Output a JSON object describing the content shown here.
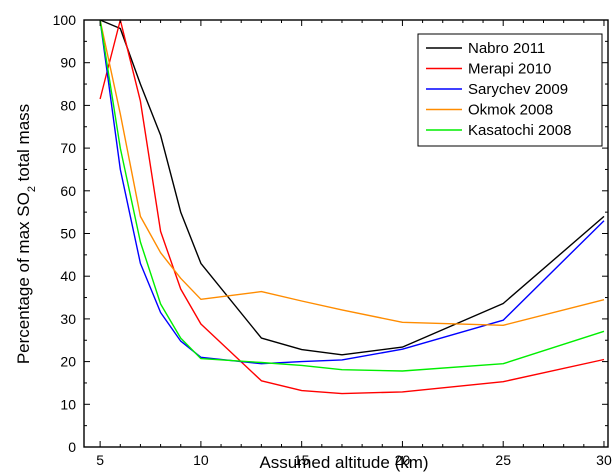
{
  "chart_data": {
    "type": "line",
    "xlabel": "Assumed altitude (km)",
    "ylabel": "Percentage of max SO2 total mass",
    "ylabel_parts": {
      "before": "Percentage of max SO",
      "sub": "2",
      "after": " total mass"
    },
    "xlim": [
      4.2,
      30.2
    ],
    "ylim": [
      0,
      100
    ],
    "xticks": [
      5,
      10,
      15,
      20,
      25,
      30
    ],
    "yticks": [
      0,
      10,
      20,
      30,
      40,
      50,
      60,
      70,
      80,
      90,
      100
    ],
    "grid": false,
    "legend_position": "top-right",
    "series": [
      {
        "name": "Nabro 2011",
        "color": "#000000",
        "x": [
          5,
          6,
          7,
          8,
          9,
          10,
          13,
          15,
          17,
          20,
          25,
          30
        ],
        "y": [
          100,
          98,
          85,
          73,
          55,
          43,
          25.5,
          22.8,
          21.6,
          23.4,
          33.6,
          54
        ]
      },
      {
        "name": "Merapi 2010",
        "color": "#ff0000",
        "x": [
          5,
          6,
          7,
          8,
          9,
          10,
          13,
          15,
          17,
          20,
          25,
          30
        ],
        "y": [
          81.5,
          100,
          81,
          50.5,
          37,
          28.8,
          15.5,
          13.2,
          12.5,
          12.9,
          15.3,
          20.5
        ]
      },
      {
        "name": "Sarychev 2009",
        "color": "#0000ff",
        "x": [
          5,
          6,
          7,
          8,
          9,
          10,
          13,
          15,
          17,
          20,
          25,
          30
        ],
        "y": [
          100,
          65,
          43,
          31.5,
          24.8,
          21,
          19.5,
          20,
          20.4,
          22.9,
          29.7,
          53
        ]
      },
      {
        "name": "Okmok 2008",
        "color": "#ff8c00",
        "x": [
          5,
          6,
          7,
          8,
          9,
          10,
          13,
          15,
          17,
          20,
          25,
          30
        ],
        "y": [
          100,
          78,
          54,
          45.5,
          39.5,
          34.6,
          36.4,
          34.2,
          32.1,
          29.2,
          28.5,
          34.5
        ]
      },
      {
        "name": "Kasatochi 2008",
        "color": "#00ee00",
        "x": [
          5,
          6,
          7,
          8,
          9,
          10,
          13,
          15,
          17,
          20,
          25,
          30
        ],
        "y": [
          100,
          70,
          48,
          33.5,
          25.5,
          20.7,
          19.8,
          19.1,
          18.1,
          17.8,
          19.5,
          27.1
        ]
      }
    ]
  }
}
